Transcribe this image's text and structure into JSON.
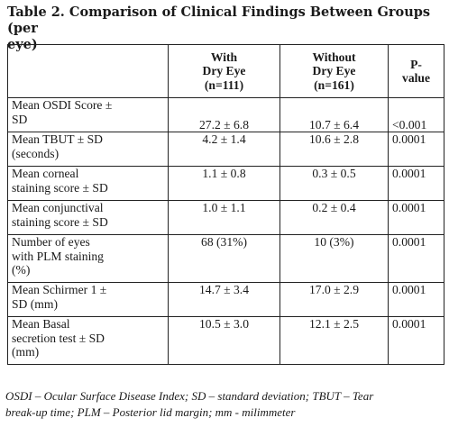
{
  "title": {
    "line1": "Table 2. Comparison of Clinical Findings Between Groups (per",
    "line2": "eye)"
  },
  "table": {
    "headers": {
      "col0": [],
      "col1": [
        "With",
        "Dry Eye",
        "(n=111)"
      ],
      "col2": [
        "Without",
        "Dry Eye",
        "(n=161)"
      ],
      "col3": [
        "P-",
        "value"
      ]
    },
    "rows": [
      {
        "label": [
          "Mean OSDI Score ±",
          "SD"
        ],
        "with": "27.2 ± 6.8",
        "without": "10.7 ± 6.4",
        "p": "<0.001",
        "valign": "bottom"
      },
      {
        "label": [
          "Mean TBUT ± SD",
          "(seconds)"
        ],
        "with": "4.2 ± 1.4",
        "without": "10.6 ± 2.8",
        "p": "0.0001",
        "valign": "top"
      },
      {
        "label": [
          "Mean corneal",
          "staining score ± SD"
        ],
        "with": "1.1 ± 0.8",
        "without": "0.3 ± 0.5",
        "p": "0.0001",
        "valign": "top"
      },
      {
        "label": [
          "Mean conjunctival",
          "staining score ± SD"
        ],
        "with": "1.0 ± 1.1",
        "without": "0.2 ± 0.4",
        "p": "0.0001",
        "valign": "top"
      },
      {
        "label": [
          "Number of eyes",
          "with PLM staining",
          "(%)"
        ],
        "with": "68 (31%)",
        "without": "10 (3%)",
        "p": "0.0001",
        "valign": "top"
      },
      {
        "label": [
          "Mean Schirmer 1 ±",
          "SD (mm)"
        ],
        "with": "14.7 ± 3.4",
        "without": "17.0 ± 2.9",
        "p": "0.0001",
        "valign": "top"
      },
      {
        "label": [
          "Mean Basal",
          "secretion test ± SD",
          "(mm)"
        ],
        "with": "10.5 ± 3.0",
        "without": "12.1 ± 2.5",
        "p": "0.0001",
        "valign": "top"
      }
    ]
  },
  "footnote": {
    "line1": "OSDI – Ocular Surface Disease Index; SD – standard deviation; TBUT – Tear",
    "line2": "break-up time; PLM – Posterior lid margin; mm - milimmeter"
  }
}
